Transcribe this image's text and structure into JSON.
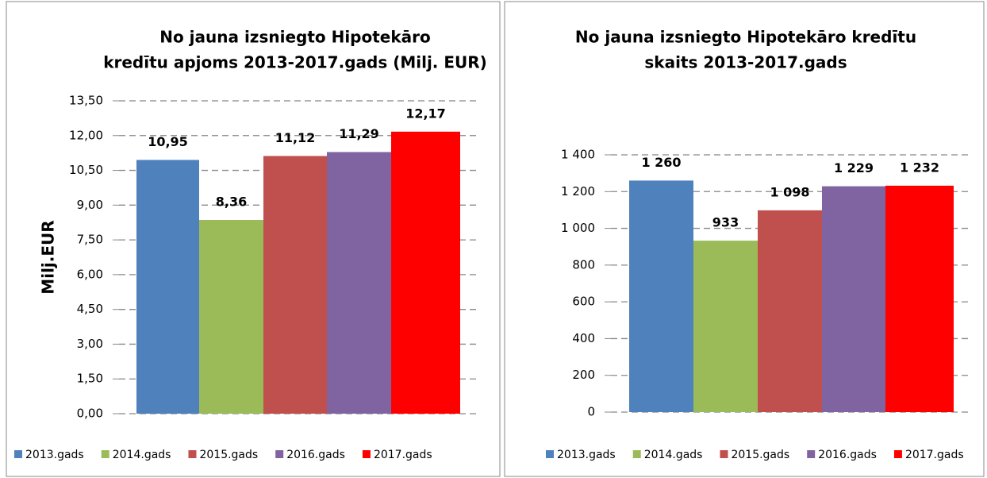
{
  "chart_data": [
    {
      "type": "bar",
      "title": [
        "No jauna izsniegto Hipotekāro",
        "kredītu apjoms 2013-2017.gads (Milj. EUR)"
      ],
      "ylabel": "Milj.EUR",
      "ylim": [
        0,
        13.5
      ],
      "yticks": [
        {
          "value": 0,
          "label": "0,00"
        },
        {
          "value": 1.5,
          "label": "1,50"
        },
        {
          "value": 3,
          "label": "3,00"
        },
        {
          "value": 4.5,
          "label": "4,50"
        },
        {
          "value": 6,
          "label": "6,00"
        },
        {
          "value": 7.5,
          "label": "7,50"
        },
        {
          "value": 9,
          "label": "9,00"
        },
        {
          "value": 10.5,
          "label": "10,50"
        },
        {
          "value": 12,
          "label": "12,00"
        },
        {
          "value": 13.5,
          "label": "13,50"
        }
      ],
      "grid": true,
      "legend": "bottom",
      "series": [
        {
          "name": "2013.gads",
          "color": "#4f81bd",
          "values": [
            10.95
          ],
          "value_labels": [
            "10,95"
          ]
        },
        {
          "name": "2014.gads",
          "color": "#9bbb59",
          "values": [
            8.36
          ],
          "value_labels": [
            "8,36"
          ]
        },
        {
          "name": "2015.gads",
          "color": "#c0504d",
          "values": [
            11.12
          ],
          "value_labels": [
            "11,12"
          ]
        },
        {
          "name": "2016.gads",
          "color": "#8064a2",
          "values": [
            11.29
          ],
          "value_labels": [
            "11,29"
          ]
        },
        {
          "name": "2017.gads",
          "color": "#ff0000",
          "values": [
            12.17
          ],
          "value_labels": [
            "12,17"
          ]
        }
      ]
    },
    {
      "type": "bar",
      "title": [
        "No jauna izsniegto Hipotekāro kredītu",
        "skaits 2013-2017.gads"
      ],
      "ylim": [
        0,
        1400
      ],
      "yticks": [
        0,
        200,
        400,
        600,
        800,
        {
          "value": 1000,
          "label": "1 000"
        },
        {
          "value": 1200,
          "label": "1 200"
        },
        {
          "value": 1400,
          "label": "1 400"
        }
      ],
      "grid": true,
      "legend": "bottom",
      "series": [
        {
          "name": "2013.gads",
          "color": "#4f81bd",
          "values": [
            1260
          ],
          "value_labels": [
            "1 260"
          ]
        },
        {
          "name": "2014.gads",
          "color": "#9bbb59",
          "values": [
            933
          ],
          "value_labels": [
            "933"
          ]
        },
        {
          "name": "2015.gads",
          "color": "#c0504d",
          "values": [
            1098
          ],
          "value_labels": [
            "1 098"
          ]
        },
        {
          "name": "2016.gads",
          "color": "#8064a2",
          "values": [
            1229
          ],
          "value_labels": [
            "1 229"
          ]
        },
        {
          "name": "2017.gads",
          "color": "#ff0000",
          "values": [
            1232
          ],
          "value_labels": [
            "1 232"
          ]
        }
      ]
    }
  ]
}
